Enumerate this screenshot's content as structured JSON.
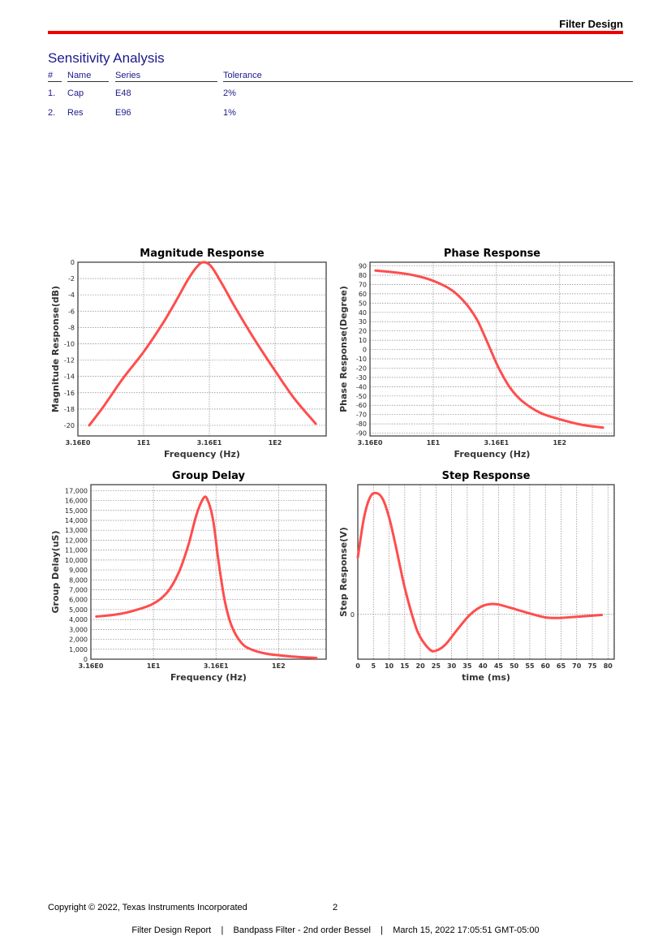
{
  "header": {
    "title": "Filter Design",
    "accent": "#ee0000"
  },
  "section": {
    "title": "Sensitivity Analysis"
  },
  "table": {
    "columns": [
      "#",
      "Name",
      "Series",
      "Tolerance"
    ],
    "rows": [
      {
        "num": "1.",
        "name": "Cap",
        "series": "E48",
        "tolerance": "2%"
      },
      {
        "num": "2.",
        "name": "Res",
        "series": "E96",
        "tolerance": "1%"
      }
    ]
  },
  "chart_data": [
    {
      "id": "mag",
      "type": "line",
      "title": "Magnitude Response",
      "xlabel": "Frequency (Hz)",
      "ylabel": "Magnitude Response(dB)",
      "xscale": "log",
      "xlim": [
        3.162,
        245
      ],
      "ylim": [
        -21.3,
        0
      ],
      "xticks": [
        {
          "v": 3.162,
          "label": "3.16E0"
        },
        {
          "v": 10,
          "label": "1E1"
        },
        {
          "v": 31.62,
          "label": "3.16E1"
        },
        {
          "v": 100,
          "label": "1E2"
        }
      ],
      "yticks": [
        {
          "v": 0,
          "label": "0"
        },
        {
          "v": -2,
          "label": "-2"
        },
        {
          "v": -4,
          "label": "-4"
        },
        {
          "v": -6,
          "label": "-6"
        },
        {
          "v": -8,
          "label": "-8"
        },
        {
          "v": -10,
          "label": "-10"
        },
        {
          "v": -12,
          "label": "-12"
        },
        {
          "v": -14,
          "label": "-14"
        },
        {
          "v": -16,
          "label": "-16"
        },
        {
          "v": -18,
          "label": "-18"
        },
        {
          "v": -20,
          "label": "-20"
        }
      ],
      "points": [
        [
          3.86,
          -20
        ],
        [
          5,
          -17.6
        ],
        [
          7,
          -14.2
        ],
        [
          10,
          -11
        ],
        [
          14,
          -7.5
        ],
        [
          18,
          -4.5
        ],
        [
          22,
          -2
        ],
        [
          26,
          -0.4
        ],
        [
          29,
          0
        ],
        [
          33,
          -0.6
        ],
        [
          40,
          -2.8
        ],
        [
          50,
          -5.6
        ],
        [
          70,
          -9.5
        ],
        [
          100,
          -13.3
        ],
        [
          140,
          -16.7
        ],
        [
          204,
          -19.8
        ]
      ],
      "color": "#ff4d4d",
      "grid": true
    },
    {
      "id": "phase",
      "type": "line",
      "title": "Phase Response",
      "xlabel": "Frequency (Hz)",
      "ylabel": "Phase Response(Degree)",
      "xscale": "log",
      "xlim": [
        3.162,
        270
      ],
      "ylim": [
        -93,
        94
      ],
      "xticks": [
        {
          "v": 3.162,
          "label": "3.16E0"
        },
        {
          "v": 10,
          "label": "1E1"
        },
        {
          "v": 31.62,
          "label": "3.16E1"
        },
        {
          "v": 100,
          "label": "1E2"
        }
      ],
      "yticks": [
        {
          "v": 90,
          "label": "90"
        },
        {
          "v": 80,
          "label": "80"
        },
        {
          "v": 70,
          "label": "70"
        },
        {
          "v": 60,
          "label": "60"
        },
        {
          "v": 50,
          "label": "50"
        },
        {
          "v": 40,
          "label": "40"
        },
        {
          "v": 30,
          "label": "30"
        },
        {
          "v": 20,
          "label": "20"
        },
        {
          "v": 10,
          "label": "10"
        },
        {
          "v": 0,
          "label": "0"
        },
        {
          "v": -10,
          "label": "-10"
        },
        {
          "v": -20,
          "label": "-20"
        },
        {
          "v": -30,
          "label": "-30"
        },
        {
          "v": -40,
          "label": "-40"
        },
        {
          "v": -50,
          "label": "-50"
        },
        {
          "v": -60,
          "label": "-60"
        },
        {
          "v": -70,
          "label": "-70"
        },
        {
          "v": -80,
          "label": "-80"
        },
        {
          "v": -90,
          "label": "-90"
        }
      ],
      "points": [
        [
          3.5,
          85
        ],
        [
          5,
          83
        ],
        [
          7,
          80
        ],
        [
          10,
          74
        ],
        [
          14,
          64
        ],
        [
          18,
          50
        ],
        [
          22,
          33
        ],
        [
          26,
          12
        ],
        [
          29,
          -3
        ],
        [
          33,
          -20
        ],
        [
          40,
          -40
        ],
        [
          50,
          -55
        ],
        [
          70,
          -68
        ],
        [
          100,
          -75
        ],
        [
          150,
          -81
        ],
        [
          220,
          -84
        ]
      ],
      "color": "#ff4d4d",
      "grid": true
    },
    {
      "id": "gd",
      "type": "line",
      "title": "Group Delay",
      "xlabel": "Frequency (Hz)",
      "ylabel": "Group Delay(uS)",
      "xscale": "log",
      "xlim": [
        3.162,
        240
      ],
      "ylim": [
        0,
        17600
      ],
      "xticks": [
        {
          "v": 3.162,
          "label": "3.16E0"
        },
        {
          "v": 10,
          "label": "1E1"
        },
        {
          "v": 31.62,
          "label": "3.16E1"
        },
        {
          "v": 100,
          "label": "1E2"
        }
      ],
      "yticks": [
        {
          "v": 0,
          "label": "0"
        },
        {
          "v": 1000,
          "label": "1,000"
        },
        {
          "v": 2000,
          "label": "2,000"
        },
        {
          "v": 3000,
          "label": "3,000"
        },
        {
          "v": 4000,
          "label": "4,000"
        },
        {
          "v": 5000,
          "label": "5,000"
        },
        {
          "v": 6000,
          "label": "6,000"
        },
        {
          "v": 7000,
          "label": "7,000"
        },
        {
          "v": 8000,
          "label": "8,000"
        },
        {
          "v": 9000,
          "label": "9,000"
        },
        {
          "v": 10000,
          "label": "10,000"
        },
        {
          "v": 11000,
          "label": "11,000"
        },
        {
          "v": 12000,
          "label": "12,000"
        },
        {
          "v": 13000,
          "label": "13,000"
        },
        {
          "v": 14000,
          "label": "14,000"
        },
        {
          "v": 15000,
          "label": "15,000"
        },
        {
          "v": 16000,
          "label": "16,000"
        },
        {
          "v": 17000,
          "label": "17,000"
        }
      ],
      "points": [
        [
          3.5,
          4300
        ],
        [
          5,
          4500
        ],
        [
          7,
          4900
        ],
        [
          10,
          5600
        ],
        [
          13,
          6800
        ],
        [
          16,
          8800
        ],
        [
          19,
          11500
        ],
        [
          22,
          14500
        ],
        [
          25,
          16200
        ],
        [
          27,
          16100
        ],
        [
          30,
          14000
        ],
        [
          33,
          10000
        ],
        [
          37,
          6000
        ],
        [
          42,
          3400
        ],
        [
          50,
          1700
        ],
        [
          60,
          1000
        ],
        [
          80,
          550
        ],
        [
          120,
          300
        ],
        [
          200,
          120
        ]
      ],
      "color": "#ff4d4d",
      "grid": true
    },
    {
      "id": "step",
      "type": "line",
      "title": "Step Response",
      "xlabel": "time (ms)",
      "ylabel": "Step Response(V)",
      "xscale": "linear",
      "xlim": [
        0,
        82
      ],
      "ylim": [
        -0.37,
        1.07
      ],
      "xticks": [
        {
          "v": 0,
          "label": "0"
        },
        {
          "v": 5,
          "label": "5"
        },
        {
          "v": 10,
          "label": "10"
        },
        {
          "v": 15,
          "label": "15"
        },
        {
          "v": 20,
          "label": "20"
        },
        {
          "v": 25,
          "label": "25"
        },
        {
          "v": 30,
          "label": "30"
        },
        {
          "v": 35,
          "label": "35"
        },
        {
          "v": 40,
          "label": "40"
        },
        {
          "v": 45,
          "label": "45"
        },
        {
          "v": 50,
          "label": "50"
        },
        {
          "v": 55,
          "label": "55"
        },
        {
          "v": 60,
          "label": "60"
        },
        {
          "v": 65,
          "label": "65"
        },
        {
          "v": 70,
          "label": "70"
        },
        {
          "v": 75,
          "label": "75"
        },
        {
          "v": 80,
          "label": "80"
        }
      ],
      "yticks": [
        {
          "v": 0,
          "label": "0"
        }
      ],
      "points": [
        [
          0,
          0.47
        ],
        [
          2,
          0.8
        ],
        [
          4,
          0.97
        ],
        [
          6,
          1.0
        ],
        [
          8,
          0.95
        ],
        [
          10,
          0.8
        ],
        [
          12,
          0.58
        ],
        [
          15,
          0.22
        ],
        [
          18,
          -0.06
        ],
        [
          20,
          -0.19
        ],
        [
          23,
          -0.29
        ],
        [
          25,
          -0.3
        ],
        [
          28,
          -0.25
        ],
        [
          32,
          -0.12
        ],
        [
          36,
          0.0
        ],
        [
          40,
          0.07
        ],
        [
          44,
          0.085
        ],
        [
          48,
          0.06
        ],
        [
          52,
          0.03
        ],
        [
          56,
          0.0
        ],
        [
          60,
          -0.025
        ],
        [
          64,
          -0.03
        ],
        [
          70,
          -0.02
        ],
        [
          78,
          -0.005
        ]
      ],
      "color": "#ff4d4d",
      "grid": true
    }
  ],
  "footer": {
    "copyright": "Copyright © 2022, Texas Instruments Incorporated",
    "page": "2",
    "report": "Filter Design Report    |    Bandpass Filter - 2nd order Bessel    |    March 15, 2022 17:05:51 GMT-05:00"
  }
}
